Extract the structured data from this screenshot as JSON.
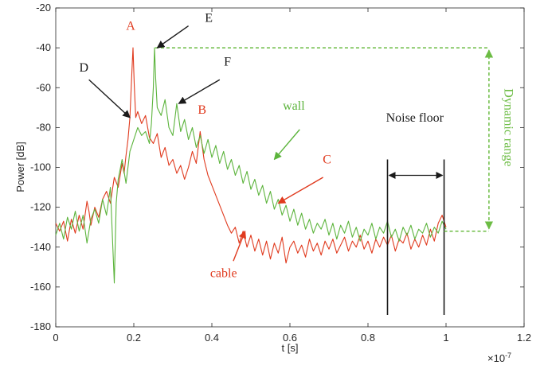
{
  "chart_data": {
    "type": "line",
    "xlabel": "t [s]",
    "ylabel": "Power [dB]",
    "x_exponent_label": "×10",
    "x_exponent_power": "-7",
    "xlim": [
      0,
      1.2
    ],
    "ylim": [
      -180,
      -20
    ],
    "x_ticks": [
      0,
      0.2,
      0.4,
      0.6,
      0.8,
      1,
      1.2
    ],
    "x_tick_labels": [
      "0",
      "0.2",
      "0.4",
      "0.6",
      "0.8",
      "1",
      "1.2"
    ],
    "y_ticks": [
      -180,
      -160,
      -140,
      -120,
      -100,
      -80,
      -60,
      -40,
      -20
    ],
    "y_tick_labels": [
      "-180",
      "-160",
      "-140",
      "-120",
      "-100",
      "-80",
      "-60",
      "-40",
      "-20"
    ],
    "colors": {
      "red": "#e03a1e",
      "green": "#5cb43c",
      "black": "#1a1a1a",
      "green_dashed": "#6cbc44"
    },
    "series": [
      {
        "name": "cable",
        "color": "#e03a1e",
        "points": [
          [
            0.0,
            -128
          ],
          [
            0.01,
            -132
          ],
          [
            0.02,
            -127
          ],
          [
            0.03,
            -137
          ],
          [
            0.04,
            -126
          ],
          [
            0.05,
            -133
          ],
          [
            0.06,
            -124
          ],
          [
            0.07,
            -131
          ],
          [
            0.08,
            -117
          ],
          [
            0.085,
            -122
          ],
          [
            0.09,
            -129
          ],
          [
            0.1,
            -120
          ],
          [
            0.11,
            -125
          ],
          [
            0.12,
            -116
          ],
          [
            0.13,
            -112
          ],
          [
            0.14,
            -118
          ],
          [
            0.15,
            -105
          ],
          [
            0.16,
            -110
          ],
          [
            0.17,
            -98
          ],
          [
            0.175,
            -103
          ],
          [
            0.18,
            -94
          ],
          [
            0.185,
            -86
          ],
          [
            0.19,
            -75
          ],
          [
            0.195,
            -52
          ],
          [
            0.198,
            -40
          ],
          [
            0.201,
            -58
          ],
          [
            0.205,
            -75
          ],
          [
            0.21,
            -72
          ],
          [
            0.22,
            -78
          ],
          [
            0.23,
            -74
          ],
          [
            0.24,
            -85
          ],
          [
            0.25,
            -88
          ],
          [
            0.26,
            -83
          ],
          [
            0.27,
            -95
          ],
          [
            0.28,
            -90
          ],
          [
            0.29,
            -99
          ],
          [
            0.3,
            -96
          ],
          [
            0.31,
            -103
          ],
          [
            0.32,
            -99
          ],
          [
            0.33,
            -106
          ],
          [
            0.34,
            -100
          ],
          [
            0.35,
            -92
          ],
          [
            0.36,
            -98
          ],
          [
            0.37,
            -82
          ],
          [
            0.38,
            -96
          ],
          [
            0.39,
            -104
          ],
          [
            0.4,
            -109
          ],
          [
            0.41,
            -114
          ],
          [
            0.42,
            -119
          ],
          [
            0.43,
            -124
          ],
          [
            0.44,
            -129
          ],
          [
            0.45,
            -133
          ],
          [
            0.46,
            -130
          ],
          [
            0.47,
            -138
          ],
          [
            0.48,
            -132
          ],
          [
            0.49,
            -140
          ],
          [
            0.5,
            -134
          ],
          [
            0.51,
            -142
          ],
          [
            0.52,
            -136
          ],
          [
            0.53,
            -144
          ],
          [
            0.54,
            -137
          ],
          [
            0.55,
            -146
          ],
          [
            0.56,
            -138
          ],
          [
            0.57,
            -143
          ],
          [
            0.58,
            -135
          ],
          [
            0.59,
            -148
          ],
          [
            0.6,
            -140
          ],
          [
            0.61,
            -137
          ],
          [
            0.62,
            -143
          ],
          [
            0.63,
            -139
          ],
          [
            0.64,
            -145
          ],
          [
            0.65,
            -136
          ],
          [
            0.66,
            -142
          ],
          [
            0.67,
            -138
          ],
          [
            0.68,
            -144
          ],
          [
            0.69,
            -137
          ],
          [
            0.7,
            -141
          ],
          [
            0.71,
            -136
          ],
          [
            0.72,
            -143
          ],
          [
            0.73,
            -139
          ],
          [
            0.74,
            -135
          ],
          [
            0.75,
            -142
          ],
          [
            0.76,
            -137
          ],
          [
            0.77,
            -140
          ],
          [
            0.78,
            -134
          ],
          [
            0.79,
            -141
          ],
          [
            0.8,
            -137
          ],
          [
            0.81,
            -143
          ],
          [
            0.82,
            -136
          ],
          [
            0.83,
            -140
          ],
          [
            0.84,
            -135
          ],
          [
            0.85,
            -139
          ],
          [
            0.86,
            -134
          ],
          [
            0.87,
            -142
          ],
          [
            0.88,
            -136
          ],
          [
            0.89,
            -138
          ],
          [
            0.9,
            -133
          ],
          [
            0.91,
            -141
          ],
          [
            0.92,
            -136
          ],
          [
            0.93,
            -140
          ],
          [
            0.94,
            -134
          ],
          [
            0.95,
            -139
          ],
          [
            0.96,
            -131
          ],
          [
            0.97,
            -137
          ],
          [
            0.98,
            -128
          ],
          [
            0.99,
            -124
          ],
          [
            1.0,
            -130
          ]
        ]
      },
      {
        "name": "wall",
        "color": "#5cb43c",
        "points": [
          [
            0.0,
            -134
          ],
          [
            0.01,
            -128
          ],
          [
            0.02,
            -136
          ],
          [
            0.03,
            -125
          ],
          [
            0.04,
            -131
          ],
          [
            0.05,
            -122
          ],
          [
            0.06,
            -132
          ],
          [
            0.07,
            -124
          ],
          [
            0.08,
            -138
          ],
          [
            0.09,
            -126
          ],
          [
            0.1,
            -121
          ],
          [
            0.11,
            -128
          ],
          [
            0.12,
            -116
          ],
          [
            0.13,
            -124
          ],
          [
            0.14,
            -110
          ],
          [
            0.15,
            -158
          ],
          [
            0.155,
            -118
          ],
          [
            0.16,
            -106
          ],
          [
            0.17,
            -96
          ],
          [
            0.18,
            -108
          ],
          [
            0.19,
            -92
          ],
          [
            0.2,
            -86
          ],
          [
            0.21,
            -80
          ],
          [
            0.22,
            -84
          ],
          [
            0.23,
            -82
          ],
          [
            0.24,
            -88
          ],
          [
            0.245,
            -78
          ],
          [
            0.25,
            -60
          ],
          [
            0.253,
            -40
          ],
          [
            0.256,
            -55
          ],
          [
            0.26,
            -70
          ],
          [
            0.27,
            -74
          ],
          [
            0.28,
            -66
          ],
          [
            0.29,
            -80
          ],
          [
            0.3,
            -84
          ],
          [
            0.31,
            -68
          ],
          [
            0.32,
            -82
          ],
          [
            0.33,
            -76
          ],
          [
            0.34,
            -86
          ],
          [
            0.35,
            -80
          ],
          [
            0.36,
            -90
          ],
          [
            0.37,
            -84
          ],
          [
            0.38,
            -93
          ],
          [
            0.39,
            -86
          ],
          [
            0.4,
            -95
          ],
          [
            0.41,
            -89
          ],
          [
            0.42,
            -98
          ],
          [
            0.43,
            -92
          ],
          [
            0.44,
            -101
          ],
          [
            0.45,
            -96
          ],
          [
            0.46,
            -104
          ],
          [
            0.47,
            -99
          ],
          [
            0.48,
            -108
          ],
          [
            0.49,
            -102
          ],
          [
            0.5,
            -111
          ],
          [
            0.51,
            -106
          ],
          [
            0.52,
            -114
          ],
          [
            0.53,
            -109
          ],
          [
            0.54,
            -118
          ],
          [
            0.55,
            -112
          ],
          [
            0.56,
            -121
          ],
          [
            0.57,
            -116
          ],
          [
            0.58,
            -124
          ],
          [
            0.59,
            -119
          ],
          [
            0.6,
            -127
          ],
          [
            0.61,
            -121
          ],
          [
            0.62,
            -129
          ],
          [
            0.63,
            -123
          ],
          [
            0.64,
            -131
          ],
          [
            0.65,
            -126
          ],
          [
            0.66,
            -133
          ],
          [
            0.67,
            -128
          ],
          [
            0.68,
            -131
          ],
          [
            0.69,
            -126
          ],
          [
            0.7,
            -134
          ],
          [
            0.71,
            -128
          ],
          [
            0.72,
            -136
          ],
          [
            0.73,
            -129
          ],
          [
            0.74,
            -133
          ],
          [
            0.75,
            -127
          ],
          [
            0.76,
            -135
          ],
          [
            0.77,
            -130
          ],
          [
            0.78,
            -137
          ],
          [
            0.79,
            -131
          ],
          [
            0.8,
            -134
          ],
          [
            0.81,
            -128
          ],
          [
            0.82,
            -136
          ],
          [
            0.83,
            -130
          ],
          [
            0.84,
            -133
          ],
          [
            0.85,
            -127
          ],
          [
            0.86,
            -135
          ],
          [
            0.87,
            -131
          ],
          [
            0.88,
            -137
          ],
          [
            0.89,
            -130
          ],
          [
            0.9,
            -134
          ],
          [
            0.91,
            -129
          ],
          [
            0.92,
            -136
          ],
          [
            0.93,
            -131
          ],
          [
            0.94,
            -133
          ],
          [
            0.95,
            -128
          ],
          [
            0.96,
            -135
          ],
          [
            0.97,
            -130
          ],
          [
            0.98,
            -133
          ],
          [
            0.99,
            -127
          ],
          [
            1.0,
            -131
          ]
        ]
      }
    ],
    "annotations": [
      {
        "text": "A",
        "color": "#e03a1e",
        "x": 0.192,
        "y": -31
      },
      {
        "text": "B",
        "color": "#e03a1e",
        "x": 0.375,
        "y": -73
      },
      {
        "text": "C",
        "color": "#e03a1e",
        "x": 0.695,
        "y": -98
      },
      {
        "text": "D",
        "color": "#1a1a1a",
        "x": 0.072,
        "y": -52
      },
      {
        "text": "E",
        "color": "#1a1a1a",
        "x": 0.392,
        "y": -27
      },
      {
        "text": "F",
        "color": "#1a1a1a",
        "x": 0.44,
        "y": -49
      },
      {
        "text": "wall",
        "color": "#5cb43c",
        "x": 0.61,
        "y": -71
      },
      {
        "text": "cable",
        "color": "#e03a1e",
        "x": 0.43,
        "y": -155
      },
      {
        "text": "Noise floor",
        "color": "#1a1a1a",
        "x": 0.92,
        "y": -77
      },
      {
        "text": "Dynamic range",
        "color": "#6cbc44",
        "x": 1.15,
        "y": -80,
        "rotated": true
      }
    ],
    "arrows": [
      {
        "name": "arrow-d",
        "color": "#1a1a1a",
        "from": [
          0.085,
          -56
        ],
        "to": [
          0.19,
          -75
        ]
      },
      {
        "name": "arrow-e",
        "color": "#1a1a1a",
        "from": [
          0.34,
          -29
        ],
        "to": [
          0.26,
          -40
        ]
      },
      {
        "name": "arrow-f",
        "color": "#1a1a1a",
        "from": [
          0.42,
          -56
        ],
        "to": [
          0.315,
          -68
        ]
      },
      {
        "name": "arrow-wall",
        "color": "#5cb43c",
        "from": [
          0.625,
          -81
        ],
        "to": [
          0.56,
          -96
        ]
      },
      {
        "name": "arrow-c",
        "color": "#e03a1e",
        "from": [
          0.685,
          -105
        ],
        "to": [
          0.57,
          -118
        ]
      },
      {
        "name": "arrow-cable",
        "color": "#e03a1e",
        "from": [
          0.455,
          -147
        ],
        "to": [
          0.485,
          -132
        ]
      }
    ],
    "noise_floor": {
      "x_start": 0.85,
      "x_end": 0.995,
      "y_top": -96,
      "y_bottom": -174,
      "arrow_y": -104
    },
    "dynamic_range": {
      "y_top": -40,
      "y_bottom": -132,
      "x_line_start": 0.255,
      "x_end": 1.11
    }
  }
}
